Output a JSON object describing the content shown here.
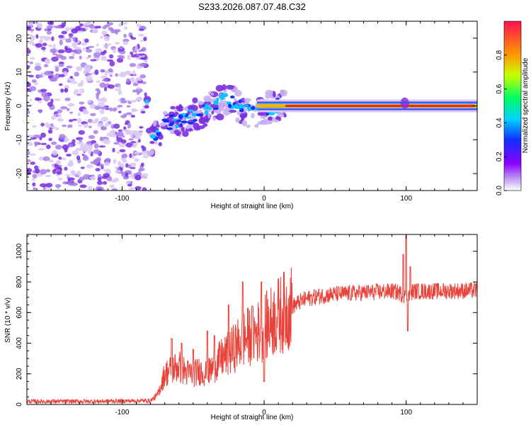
{
  "title": "S233.2026.087.07.48.C32",
  "colors": {
    "snr_line": "#e8423a",
    "spectrum_dark": "#7a3fd9",
    "spectrum_light": "#c9b3f0",
    "axis": "#000000"
  },
  "chart_data": [
    {
      "type": "heatmap",
      "name": "spectrogram",
      "title": "S233.2026.087.07.48.C32",
      "xlabel": "Height of straight line (km)",
      "ylabel": "Frequency (Hz)",
      "xlim": [
        -167,
        150
      ],
      "ylim": [
        -25,
        25
      ],
      "xticks": [
        -100,
        0,
        100
      ],
      "yticks": [
        -20,
        -10,
        0,
        10,
        20
      ],
      "colorbar": {
        "label": "Normalized spectral amplitude",
        "range": [
          0.0,
          1.0
        ],
        "ticks": [
          0.0,
          0.2,
          0.4,
          0.6,
          0.8
        ],
        "tick_labels": [
          "0.0",
          "0.2",
          "0.4",
          "0.6",
          "0.8"
        ],
        "stops": [
          "#ffffff",
          "#8b00ff",
          "#0033ff",
          "#00e0ff",
          "#00ff40",
          "#ffff00",
          "#ff8800",
          "#ff1040"
        ]
      },
      "signal_trace": {
        "description_points_km_hz": [
          [
            -82,
            -12
          ],
          [
            -70,
            -5
          ],
          [
            -55,
            -4
          ],
          [
            -40,
            -1
          ],
          [
            -25,
            2
          ],
          [
            -15,
            -1
          ],
          [
            -8,
            -2
          ],
          [
            0,
            -1
          ],
          [
            10,
            0
          ],
          [
            20,
            0
          ],
          [
            150,
            0
          ]
        ],
        "noise_region_km": [
          -167,
          -83
        ]
      }
    },
    {
      "type": "line",
      "name": "snr",
      "xlabel": "Height of straight line (km)",
      "ylabel": "SNR (10 * v/v)",
      "xlim": [
        -167,
        150
      ],
      "ylim": [
        0,
        1110
      ],
      "xticks": [
        -100,
        0,
        100
      ],
      "yticks": [
        0,
        200,
        400,
        600,
        800,
        1000
      ],
      "series": [
        {
          "name": "SNR",
          "envelope_points": [
            [
              -167,
              20
            ],
            [
              -120,
              20
            ],
            [
              -80,
              25
            ],
            [
              -75,
              60
            ],
            [
              -70,
              200
            ],
            [
              -65,
              230
            ],
            [
              -60,
              250
            ],
            [
              -55,
              210
            ],
            [
              -50,
              200
            ],
            [
              -45,
              220
            ],
            [
              -40,
              200
            ],
            [
              -35,
              250
            ],
            [
              -30,
              300
            ],
            [
              -25,
              330
            ],
            [
              -20,
              380
            ],
            [
              -15,
              420
            ],
            [
              -10,
              450
            ],
            [
              -5,
              470
            ],
            [
              0,
              500
            ],
            [
              5,
              540
            ],
            [
              10,
              580
            ],
            [
              15,
              610
            ],
            [
              20,
              640
            ],
            [
              25,
              670
            ],
            [
              30,
              690
            ],
            [
              40,
              710
            ],
            [
              50,
              720
            ],
            [
              70,
              730
            ],
            [
              90,
              740
            ],
            [
              95,
              730
            ],
            [
              100,
              700
            ],
            [
              105,
              740
            ],
            [
              120,
              740
            ],
            [
              150,
              745
            ]
          ],
          "spikes": [
            [
              -65,
              430
            ],
            [
              -58,
              400
            ],
            [
              -50,
              360
            ],
            [
              -40,
              480
            ],
            [
              -35,
              450
            ],
            [
              -25,
              650
            ],
            [
              -15,
              800
            ],
            [
              -8,
              640
            ],
            [
              -2,
              800
            ],
            [
              0,
              150
            ],
            [
              98,
              980
            ],
            [
              100,
              1100
            ],
            [
              101,
              480
            ],
            [
              103,
              900
            ]
          ]
        }
      ]
    }
  ]
}
